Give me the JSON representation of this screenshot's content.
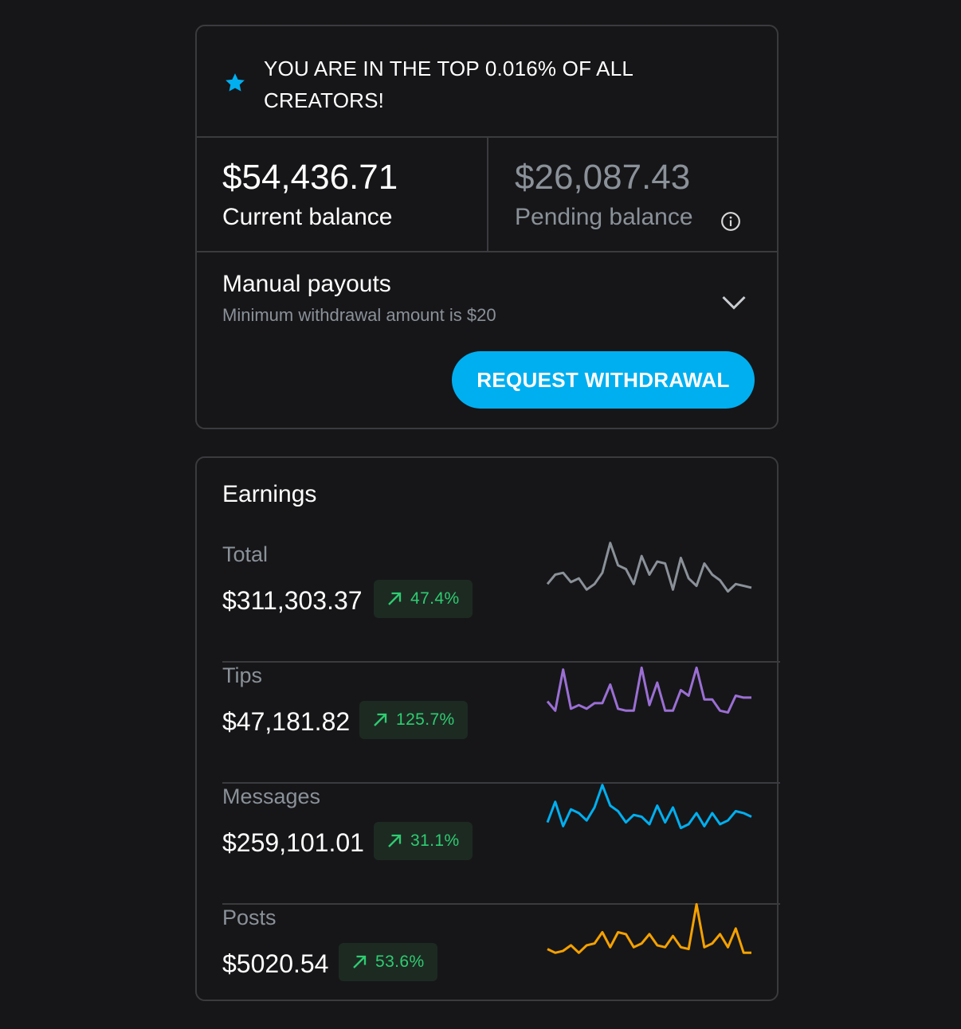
{
  "banner": {
    "icon": "star-icon",
    "text": "YOU ARE IN THE TOP 0.016% OF ALL CREATORS!"
  },
  "balances": {
    "current_amount": "$54,436.71",
    "current_label": "Current balance",
    "pending_amount": "$26,087.43",
    "pending_label": "Pending balance",
    "info_icon": "info-icon"
  },
  "payouts": {
    "title": "Manual payouts",
    "subtitle": "Minimum withdrawal amount is $20",
    "toggle_icon": "chevron-down-icon",
    "button_label": "REQUEST WITHDRAWAL"
  },
  "earnings": {
    "title": "Earnings",
    "rows": [
      {
        "label": "Total",
        "value": "$311,303.37",
        "change": "47.4%",
        "color": "#8a9199",
        "spark": [
          36,
          46,
          48,
          38,
          42,
          30,
          36,
          48,
          80,
          56,
          52,
          36,
          66,
          46,
          60,
          58,
          30,
          64,
          42,
          34,
          58,
          46,
          40,
          28,
          36,
          34,
          32
        ]
      },
      {
        "label": "Tips",
        "value": "$47,181.82",
        "change": "125.7%",
        "color": "#9b6fd4",
        "spark": [
          40,
          30,
          74,
          32,
          36,
          32,
          38,
          38,
          58,
          32,
          30,
          30,
          76,
          36,
          60,
          30,
          30,
          52,
          46,
          76,
          42,
          42,
          30,
          28,
          46,
          44,
          44
        ]
      },
      {
        "label": "Messages",
        "value": "$259,101.01",
        "change": "31.1%",
        "color": "#00aff0",
        "spark": [
          40,
          62,
          36,
          54,
          50,
          42,
          56,
          80,
          58,
          52,
          40,
          48,
          46,
          38,
          58,
          40,
          56,
          34,
          38,
          50,
          36,
          50,
          38,
          42,
          52,
          50,
          46
        ]
      },
      {
        "label": "Posts",
        "value": "$5020.54",
        "change": "53.6%",
        "color": "#f5a100",
        "spark": [
          34,
          30,
          32,
          38,
          30,
          38,
          40,
          52,
          36,
          52,
          50,
          36,
          40,
          50,
          38,
          36,
          48,
          36,
          34,
          82,
          36,
          40,
          50,
          36,
          56,
          30,
          30
        ]
      }
    ]
  }
}
